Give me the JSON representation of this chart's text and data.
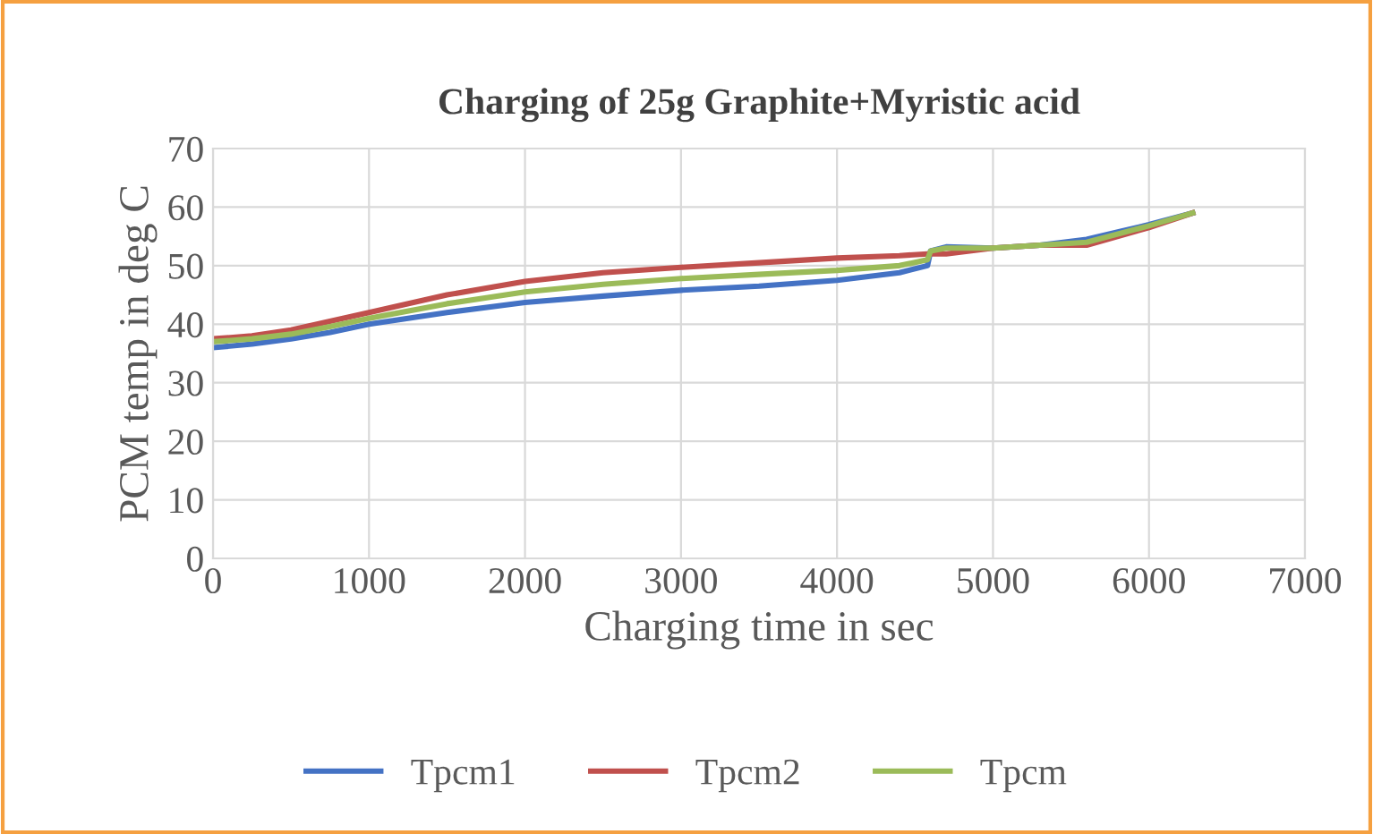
{
  "chart_data": {
    "type": "line",
    "title": "Charging of 25g Graphite+Myristic acid",
    "xlabel": "Charging time in sec",
    "ylabel": "PCM temp in deg C",
    "x": [
      0,
      250,
      500,
      750,
      1000,
      1500,
      2000,
      2500,
      3000,
      3500,
      4000,
      4400,
      4580,
      4600,
      4700,
      5000,
      5300,
      5600,
      6000,
      6280
    ],
    "series": [
      {
        "name": "Tpcm1",
        "color": "#4472c4",
        "values": [
          36,
          36.6,
          37.5,
          38.6,
          40,
          42,
          43.7,
          44.8,
          45.8,
          46.5,
          47.5,
          48.8,
          50,
          52.5,
          53.2,
          53,
          53.5,
          54.5,
          57,
          59
        ]
      },
      {
        "name": "Tpcm2",
        "color": "#c0504d",
        "values": [
          37.5,
          38,
          39,
          40.5,
          42,
          45,
          47.3,
          48.8,
          49.7,
          50.5,
          51.3,
          51.7,
          52,
          52,
          52,
          53,
          53.5,
          53.5,
          56.5,
          59
        ]
      },
      {
        "name": "Tpcm",
        "color": "#9bbb59",
        "values": [
          37,
          37.5,
          38.3,
          39.6,
          41,
          43.5,
          45.5,
          46.8,
          47.8,
          48.5,
          49.2,
          50,
          51,
          52.5,
          53,
          53,
          53.5,
          54,
          56.8,
          59
        ]
      }
    ],
    "xlim": [
      0,
      7000
    ],
    "xticks": [
      0,
      1000,
      2000,
      3000,
      4000,
      5000,
      6000,
      7000
    ],
    "ylim": [
      0,
      70
    ],
    "yticks": [
      0,
      10,
      20,
      30,
      40,
      50,
      60,
      70
    ],
    "grid": true,
    "legend": "bottom",
    "marker": "none",
    "line_style": "solid"
  }
}
